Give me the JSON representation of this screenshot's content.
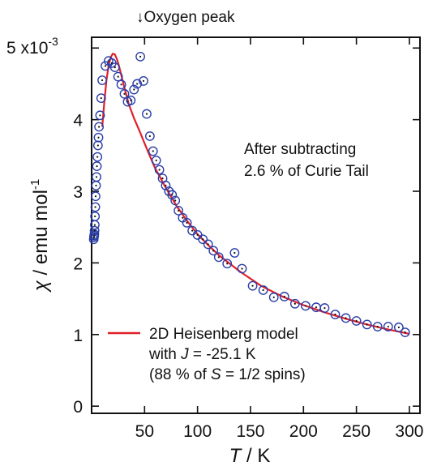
{
  "chart_data": {
    "type": "scatter",
    "xlabel_var": "T",
    "xlabel_unit": " / K",
    "ylabel_var": "χ",
    "ylabel_unit": " / emu mol",
    "ylabel_sup": "-1",
    "y_multiplier_base": "5 x10",
    "y_multiplier_exp": "-3",
    "xlim": [
      0,
      310
    ],
    "ylim": [
      -0.1,
      5.15
    ],
    "x_ticks": [
      50,
      100,
      150,
      200,
      250,
      300
    ],
    "x_tick_labels": [
      "50",
      "100",
      "150",
      "200",
      "250",
      "300"
    ],
    "y_ticks": [
      0,
      1,
      2,
      3,
      4
    ],
    "y_tick_labels": [
      "0",
      "1",
      "2",
      "3",
      "4"
    ],
    "grid": false,
    "annotation_arrow": "↓",
    "annotation_text": "Oxygen peak",
    "annotation_x": 48,
    "subtract_note_line1": "After subtracting",
    "subtract_note_line2": "2.6 % of Curie Tail",
    "legend": {
      "line1": "2D Heisenberg model",
      "line2_pre": "with ",
      "line2_var": "J",
      "line2_post": " = -25.1 K",
      "line3_pre": "(88 % of  ",
      "line3_var": "S",
      "line3_post": "  = 1/2 spins)"
    },
    "colors": {
      "model_line": "#e0202a",
      "data_markers": "#2b3fa8"
    },
    "series": [
      {
        "name": "",
        "type": "scatter",
        "x": [
          2.0,
          2.2,
          2.4,
          2.6,
          2.8,
          3.0,
          3.2,
          3.5,
          3.8,
          4.2,
          4.6,
          5.0,
          5.5,
          6.0,
          6.5,
          7.0,
          8.0,
          9.0,
          10.0,
          13,
          16,
          19,
          22,
          25,
          28,
          31,
          34,
          37,
          40,
          43,
          46,
          49,
          52,
          55,
          58,
          61,
          64,
          67,
          70,
          73,
          76,
          79,
          82,
          86,
          90,
          95,
          100,
          105,
          110,
          115,
          120,
          128,
          135,
          142,
          152,
          162,
          172,
          182,
          192,
          202,
          212,
          220,
          230,
          240,
          250,
          260,
          270,
          280,
          290,
          296
        ],
        "y": [
          2.33,
          2.36,
          2.38,
          2.4,
          2.45,
          2.53,
          2.65,
          2.78,
          2.93,
          3.08,
          3.2,
          3.35,
          3.48,
          3.64,
          3.75,
          3.9,
          4.06,
          4.3,
          4.55,
          4.75,
          4.82,
          4.79,
          4.73,
          4.6,
          4.49,
          4.36,
          4.25,
          4.27,
          4.42,
          4.5,
          4.88,
          4.54,
          4.08,
          3.77,
          3.56,
          3.43,
          3.3,
          3.18,
          3.08,
          3.0,
          2.95,
          2.87,
          2.73,
          2.63,
          2.56,
          2.45,
          2.39,
          2.33,
          2.26,
          2.17,
          2.08,
          1.99,
          2.14,
          1.92,
          1.68,
          1.62,
          1.52,
          1.53,
          1.43,
          1.4,
          1.38,
          1.37,
          1.28,
          1.23,
          1.19,
          1.14,
          1.11,
          1.11,
          1.1,
          1.03
        ]
      },
      {
        "name": "2D Heisenberg model",
        "type": "line",
        "x": [
          10,
          12,
          14,
          16,
          18,
          20,
          22,
          24,
          26,
          28,
          30,
          35,
          40,
          45,
          50,
          55,
          60,
          70,
          80,
          90,
          100,
          110,
          120,
          140,
          160,
          180,
          200,
          220,
          240,
          260,
          280,
          300
        ],
        "y": [
          3.9,
          4.25,
          4.55,
          4.75,
          4.87,
          4.92,
          4.91,
          4.84,
          4.74,
          4.62,
          4.5,
          4.22,
          4.02,
          3.85,
          3.67,
          3.49,
          3.32,
          3.05,
          2.8,
          2.59,
          2.4,
          2.25,
          2.11,
          1.88,
          1.68,
          1.53,
          1.41,
          1.31,
          1.22,
          1.14,
          1.07,
          1.01
        ]
      }
    ]
  }
}
